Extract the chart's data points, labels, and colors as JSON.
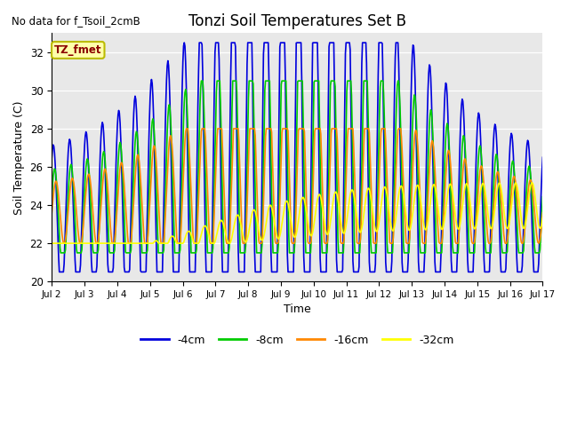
{
  "title": "Tonzi Soil Temperatures Set B",
  "xlabel": "Time",
  "ylabel": "Soil Temperature (C)",
  "no_data_text": "No data for f_Tsoil_2cmB",
  "legend_label": "TZ_fmet",
  "ylim": [
    20,
    33
  ],
  "yticks": [
    20,
    22,
    24,
    26,
    28,
    30,
    32
  ],
  "xtick_labels": [
    "Jul 2",
    "Jul 3",
    "Jul 4",
    "Jul 5",
    "Jul 6",
    "Jul 7",
    "Jul 8",
    "Jul 9",
    "Jul 10",
    "Jul 11",
    "Jul 12",
    "Jul 13",
    "Jul 14",
    "Jul 15",
    "Jul 16",
    "Jul 17"
  ],
  "colors": {
    "4cm": "#0000dd",
    "8cm": "#00cc00",
    "16cm": "#ff8800",
    "32cm": "#ffff00"
  },
  "bg_color": "#e8e8e8",
  "line_width": 1.2
}
